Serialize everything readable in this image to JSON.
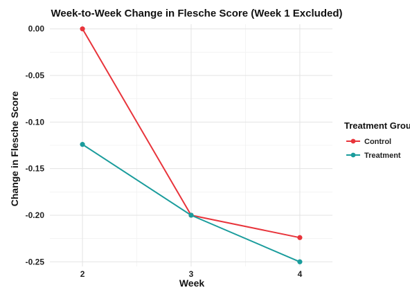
{
  "chart_data": {
    "type": "line",
    "title": "Week-to-Week Change in Flesche Score (Week 1 Excluded)",
    "xlabel": "Week",
    "ylabel": "Change in Flesche Score",
    "x": [
      2,
      3,
      4
    ],
    "x_tick_labels": [
      "2",
      "3",
      "4"
    ],
    "ylim": [
      -0.255,
      0.005
    ],
    "y_ticks": [
      0.0,
      -0.05,
      -0.1,
      -0.15,
      -0.2,
      -0.25
    ],
    "y_tick_labels": [
      "0.00",
      "-0.05",
      "-0.10",
      "-0.15",
      "-0.20",
      "-0.25"
    ],
    "grid": true,
    "legend": {
      "title": "Treatment Group",
      "position": "right"
    },
    "series": [
      {
        "name": "Control",
        "color": "#e8343b",
        "values": [
          0.0,
          -0.2,
          -0.224
        ]
      },
      {
        "name": "Treatment",
        "color": "#1a9c9c",
        "values": [
          -0.124,
          -0.2,
          -0.25
        ]
      }
    ]
  }
}
